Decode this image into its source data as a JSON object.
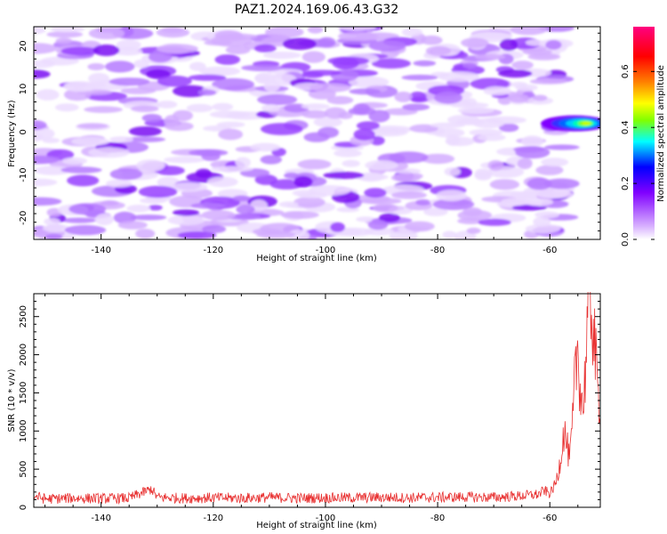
{
  "title": "PAZ1.2024.169.06.43.G32",
  "chart_data": [
    {
      "type": "heatmap",
      "title": "PAZ1.2024.169.06.43.G32",
      "xlabel": "Height of straight line (km)",
      "ylabel": "Frequency (Hz)",
      "xlim": [
        -152,
        -51
      ],
      "ylim": [
        -25,
        24.5
      ],
      "x_ticks": [
        -140,
        -120,
        -100,
        -80,
        -60
      ],
      "y_ticks": [
        -20,
        -10,
        0,
        10,
        20
      ],
      "colorbar": {
        "label": "Normalized spectral amplitude",
        "range": [
          0.0,
          0.76
        ],
        "ticks": [
          0.0,
          0.2,
          0.4,
          0.6
        ],
        "colormap": [
          "#ffffff",
          "#d9b3ff",
          "#8000ff",
          "#0000ff",
          "#00ffff",
          "#80ff00",
          "#ffff00",
          "#ff8000",
          "#ff0000",
          "#ff0080"
        ]
      },
      "background_level": 0.06,
      "peak": {
        "x": -54,
        "y": 2,
        "value": 0.56
      },
      "grid": false
    },
    {
      "type": "line",
      "xlabel": "Height of straight line (km)",
      "ylabel": "SNR (10 * v/v)",
      "xlim": [
        -152,
        -51
      ],
      "ylim": [
        0,
        2800
      ],
      "x_ticks": [
        -140,
        -120,
        -100,
        -80,
        -60
      ],
      "y_ticks": [
        0,
        500,
        1000,
        1500,
        2000,
        2500
      ],
      "color": "#e83030",
      "series": [
        {
          "x": [
            -152,
            -150,
            -145,
            -140,
            -135,
            -131,
            -130,
            -125,
            -120,
            -115,
            -110,
            -105,
            -100,
            -95,
            -90,
            -85,
            -80,
            -75,
            -70,
            -65,
            -62,
            -61,
            -60,
            -59,
            -58.5,
            -58,
            -57.5,
            -57,
            -56.5,
            -56,
            -55.5,
            -55,
            -54.5,
            -54,
            -53.5,
            -53,
            -52.5,
            -52,
            -51.5,
            -51
          ],
          "y": [
            150,
            110,
            120,
            115,
            120,
            240,
            130,
            120,
            125,
            120,
            130,
            120,
            125,
            125,
            130,
            125,
            130,
            135,
            130,
            150,
            170,
            220,
            180,
            300,
            450,
            700,
            1000,
            850,
            600,
            1000,
            1700,
            2100,
            1500,
            1300,
            2100,
            2780,
            2650,
            2100,
            1500,
            1400
          ]
        }
      ],
      "grid": false
    }
  ]
}
